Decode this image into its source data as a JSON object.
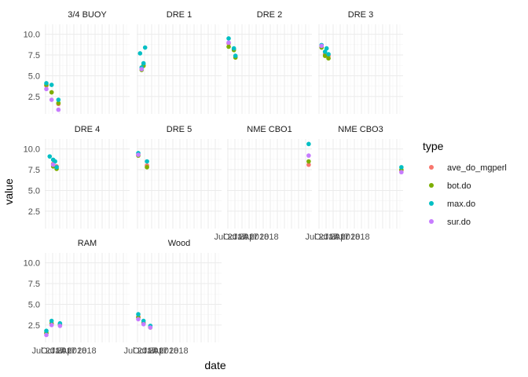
{
  "chart_data": {
    "type": "scatter",
    "xlabel": "date",
    "ylabel": "value",
    "y_ticks": [
      "2.5",
      "5.0",
      "7.5",
      "10.0"
    ],
    "x_ticks": [
      "Jul 2017",
      "Oct 2017",
      "Jan 2018",
      "Apr 2018"
    ],
    "ylim": [
      0.4,
      11.2
    ],
    "xlim": [
      "2017-06-01",
      "2019-06-30"
    ],
    "grid": true,
    "legend": {
      "title": "type",
      "position": "right",
      "items": [
        {
          "name": "ave_do_mgperl",
          "color": "#F8766D"
        },
        {
          "name": "bot.do",
          "color": "#7CAE00"
        },
        {
          "name": "max.do",
          "color": "#00BFC4"
        },
        {
          "name": "sur.do",
          "color": "#C77CFF"
        }
      ]
    },
    "facets": [
      {
        "label": "3/4 BUOY",
        "series": {
          "ave_do_mgperl": [
            [
              "2017-06-15",
              3.8
            ],
            [
              "2017-08-01",
              3.0
            ],
            [
              "2017-10-01",
              1.6
            ]
          ],
          "bot.do": [
            [
              "2017-06-15",
              3.9
            ],
            [
              "2017-08-01",
              3.0
            ],
            [
              "2017-10-01",
              1.7
            ]
          ],
          "max.do": [
            [
              "2017-06-15",
              4.1
            ],
            [
              "2017-08-01",
              3.9
            ],
            [
              "2017-10-01",
              2.1
            ]
          ],
          "sur.do": [
            [
              "2017-06-15",
              3.4
            ],
            [
              "2017-08-01",
              2.1
            ],
            [
              "2017-10-01",
              0.9
            ]
          ]
        }
      },
      {
        "label": "DRE 1",
        "series": {
          "ave_do_mgperl": [
            [
              "2017-07-15",
              5.9
            ],
            [
              "2017-08-01",
              6.3
            ]
          ],
          "bot.do": [
            [
              "2017-07-15",
              5.7
            ],
            [
              "2017-08-01",
              6.2
            ]
          ],
          "max.do": [
            [
              "2017-07-01",
              7.7
            ],
            [
              "2017-07-15",
              6.0
            ],
            [
              "2017-08-01",
              6.5
            ],
            [
              "2017-08-15",
              8.4
            ]
          ],
          "sur.do": [
            [
              "2017-07-15",
              5.8
            ]
          ]
        }
      },
      {
        "label": "DRE 2",
        "series": {
          "ave_do_mgperl": [
            [
              "2017-06-15",
              8.9
            ],
            [
              "2017-08-01",
              8.2
            ],
            [
              "2017-08-15",
              7.3
            ]
          ],
          "bot.do": [
            [
              "2017-06-15",
              8.5
            ],
            [
              "2017-08-01",
              8.1
            ],
            [
              "2017-08-15",
              7.2
            ]
          ],
          "max.do": [
            [
              "2017-06-15",
              9.5
            ],
            [
              "2017-08-01",
              8.3
            ],
            [
              "2017-08-15",
              7.4
            ]
          ],
          "sur.do": [
            [
              "2017-06-15",
              9.0
            ]
          ]
        }
      },
      {
        "label": "DRE 3",
        "series": {
          "ave_do_mgperl": [
            [
              "2017-07-01",
              8.5
            ],
            [
              "2017-08-01",
              7.6
            ],
            [
              "2017-09-01",
              7.4
            ]
          ],
          "bot.do": [
            [
              "2017-07-01",
              8.4
            ],
            [
              "2017-08-01",
              7.4
            ],
            [
              "2017-09-01",
              7.1
            ]
          ],
          "max.do": [
            [
              "2017-07-01",
              8.7
            ],
            [
              "2017-08-01",
              7.9
            ],
            [
              "2017-08-15",
              8.3
            ],
            [
              "2017-09-01",
              7.6
            ]
          ],
          "sur.do": [
            [
              "2017-07-01",
              8.6
            ]
          ]
        }
      },
      {
        "label": "DRE 4",
        "series": {
          "ave_do_mgperl": [
            [
              "2017-08-15",
              8.2
            ],
            [
              "2017-09-15",
              7.9
            ]
          ],
          "bot.do": [
            [
              "2017-08-15",
              7.9
            ],
            [
              "2017-09-15",
              7.6
            ]
          ],
          "max.do": [
            [
              "2017-07-15",
              9.1
            ],
            [
              "2017-08-15",
              8.7
            ],
            [
              "2017-09-01",
              8.5
            ],
            [
              "2017-09-15",
              7.8
            ]
          ],
          "sur.do": [
            [
              "2017-08-15",
              8.1
            ]
          ]
        }
      },
      {
        "label": "DRE 5",
        "series": {
          "ave_do_mgperl": [
            [
              "2017-06-15",
              9.3
            ],
            [
              "2017-09-01",
              8.0
            ]
          ],
          "bot.do": [
            [
              "2017-06-15",
              9.2
            ],
            [
              "2017-09-01",
              7.8
            ]
          ],
          "max.do": [
            [
              "2017-06-15",
              9.5
            ],
            [
              "2017-09-01",
              8.5
            ]
          ],
          "sur.do": [
            [
              "2017-06-15",
              9.3
            ]
          ]
        }
      },
      {
        "label": "NME CBO1",
        "series": {
          "ave_do_mgperl": [
            [
              "2019-06-01",
              8.1
            ]
          ],
          "bot.do": [
            [
              "2019-06-01",
              8.5
            ]
          ],
          "max.do": [
            [
              "2019-06-01",
              10.6
            ]
          ],
          "sur.do": [
            [
              "2019-06-01",
              9.2
            ]
          ]
        }
      },
      {
        "label": "NME CBO3",
        "series": {
          "ave_do_mgperl": [
            [
              "2019-06-15",
              7.4
            ]
          ],
          "bot.do": [
            [
              "2019-06-15",
              7.5
            ]
          ],
          "max.do": [
            [
              "2019-06-15",
              7.8
            ]
          ],
          "sur.do": [
            [
              "2019-06-15",
              7.2
            ]
          ]
        }
      },
      {
        "label": "RAM",
        "series": {
          "ave_do_mgperl": [
            [
              "2017-06-15",
              1.6
            ],
            [
              "2017-08-01",
              2.6
            ],
            [
              "2017-10-15",
              2.5
            ]
          ],
          "bot.do": [
            [
              "2017-06-15",
              1.5
            ],
            [
              "2017-08-01",
              2.7
            ],
            [
              "2017-10-15",
              2.6
            ]
          ],
          "max.do": [
            [
              "2017-06-15",
              1.8
            ],
            [
              "2017-08-01",
              3.0
            ],
            [
              "2017-10-15",
              2.7
            ]
          ],
          "sur.do": [
            [
              "2017-06-15",
              1.3
            ],
            [
              "2017-08-01",
              2.5
            ],
            [
              "2017-10-15",
              2.4
            ]
          ]
        }
      },
      {
        "label": "Wood",
        "series": {
          "ave_do_mgperl": [
            [
              "2017-06-15",
              3.5
            ],
            [
              "2017-08-01",
              2.8
            ],
            [
              "2017-10-01",
              2.3
            ]
          ],
          "bot.do": [
            [
              "2017-06-15",
              3.4
            ],
            [
              "2017-08-01",
              2.7
            ],
            [
              "2017-10-01",
              2.2
            ]
          ],
          "max.do": [
            [
              "2017-06-15",
              3.8
            ],
            [
              "2017-08-01",
              3.0
            ],
            [
              "2017-10-01",
              2.4
            ]
          ],
          "sur.do": [
            [
              "2017-06-15",
              3.2
            ],
            [
              "2017-08-01",
              2.6
            ],
            [
              "2017-10-01",
              2.2
            ]
          ]
        }
      }
    ]
  }
}
